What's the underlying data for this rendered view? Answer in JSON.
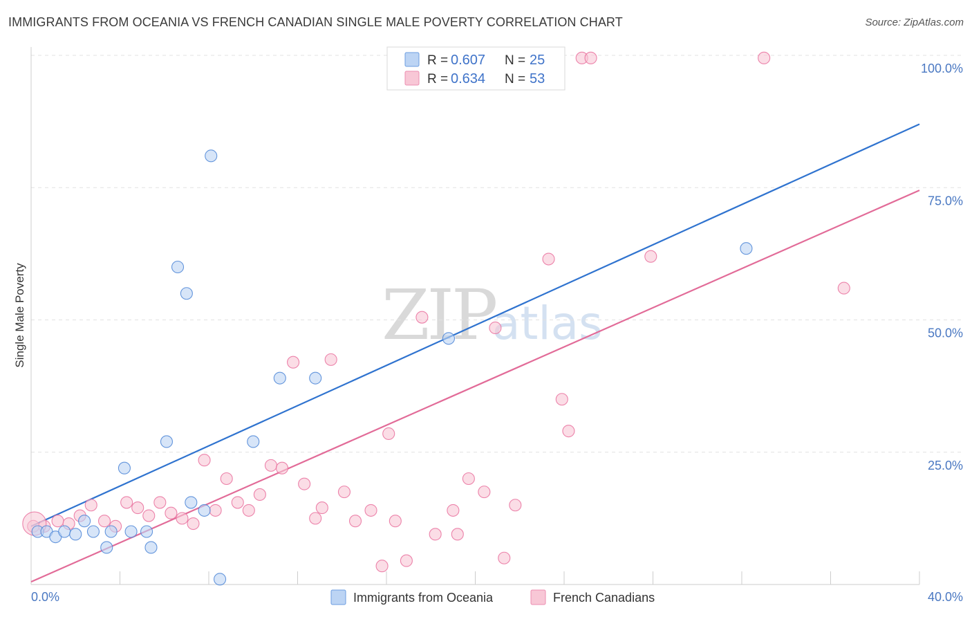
{
  "title": "IMMIGRANTS FROM OCEANIA VS FRENCH CANADIAN SINGLE MALE POVERTY CORRELATION CHART",
  "source": "Source: ZipAtlas.com",
  "watermark": {
    "left": "ZIP",
    "right": "atlas"
  },
  "colors": {
    "blue": "#4a84d6",
    "blue_fill": "#bcd4f4",
    "blue_line": "#2f73cf",
    "pink": "#e96f9c",
    "pink_fill": "#f8c7d6",
    "pink_line": "#e26b98",
    "tick_text": "#4a78c2"
  },
  "chart_data": {
    "type": "scatter",
    "title": "IMMIGRANTS FROM OCEANIA VS FRENCH CANADIAN SINGLE MALE POVERTY CORRELATION CHART",
    "xlabel": "",
    "ylabel": "Single Male Poverty",
    "xlim": [
      0,
      40
    ],
    "ylim": [
      0,
      100
    ],
    "x_tick_labels": [
      "0.0%",
      "40.0%"
    ],
    "y_ticks": [
      25,
      50,
      75,
      100
    ],
    "y_tick_labels": [
      "25.0%",
      "50.0%",
      "75.0%",
      "100.0%"
    ],
    "legend": [
      {
        "r_label": "R =",
        "r_value": "0.607",
        "n_label": "N =",
        "n_value": "25"
      },
      {
        "r_label": "R =",
        "r_value": "0.634",
        "n_label": "N =",
        "n_value": "53"
      }
    ],
    "series": [
      {
        "name": "Immigrants from Oceania",
        "color": "#4a84d6",
        "trend": {
          "x0": 0,
          "y0": 11.0,
          "x1": 40,
          "y1": 87.0
        },
        "points": [
          [
            0.3,
            10.0
          ],
          [
            0.7,
            10.0
          ],
          [
            1.1,
            9.0
          ],
          [
            1.5,
            10.0
          ],
          [
            2.0,
            9.5
          ],
          [
            2.4,
            12.0
          ],
          [
            2.8,
            10.0
          ],
          [
            3.4,
            7.0
          ],
          [
            3.6,
            10.0
          ],
          [
            4.2,
            22.0
          ],
          [
            4.5,
            10.0
          ],
          [
            5.2,
            10.0
          ],
          [
            5.4,
            7.0
          ],
          [
            6.1,
            27.0
          ],
          [
            6.6,
            60.0
          ],
          [
            7.0,
            55.0
          ],
          [
            7.2,
            15.5
          ],
          [
            7.8,
            14.0
          ],
          [
            8.1,
            81.0
          ],
          [
            8.5,
            1.0
          ],
          [
            10.0,
            27.0
          ],
          [
            11.2,
            39.0
          ],
          [
            12.8,
            39.0
          ],
          [
            18.8,
            46.5
          ],
          [
            32.2,
            63.5
          ]
        ]
      },
      {
        "name": "French Canadians",
        "color": "#e96f9c",
        "trend": {
          "x0": 0,
          "y0": 0.5,
          "x1": 40,
          "y1": 74.5
        },
        "points": [
          [
            0.1,
            11.0
          ],
          [
            0.6,
            11.0
          ],
          [
            1.2,
            12.0
          ],
          [
            1.7,
            11.5
          ],
          [
            2.2,
            13.0
          ],
          [
            2.7,
            15.0
          ],
          [
            3.3,
            12.0
          ],
          [
            3.8,
            11.0
          ],
          [
            4.3,
            15.5
          ],
          [
            4.8,
            14.5
          ],
          [
            5.3,
            13.0
          ],
          [
            5.8,
            15.5
          ],
          [
            6.3,
            13.5
          ],
          [
            6.8,
            12.5
          ],
          [
            7.3,
            11.5
          ],
          [
            7.8,
            23.5
          ],
          [
            8.3,
            14.0
          ],
          [
            8.8,
            20.0
          ],
          [
            9.3,
            15.5
          ],
          [
            9.8,
            14.0
          ],
          [
            10.3,
            17.0
          ],
          [
            10.8,
            22.5
          ],
          [
            11.3,
            22.0
          ],
          [
            11.8,
            42.0
          ],
          [
            12.3,
            19.0
          ],
          [
            12.8,
            12.5
          ],
          [
            13.1,
            14.5
          ],
          [
            13.5,
            42.5
          ],
          [
            14.1,
            17.5
          ],
          [
            14.6,
            12.0
          ],
          [
            15.3,
            14.0
          ],
          [
            15.8,
            3.5
          ],
          [
            16.1,
            28.5
          ],
          [
            16.4,
            12.0
          ],
          [
            16.9,
            4.5
          ],
          [
            17.6,
            50.5
          ],
          [
            18.2,
            9.5
          ],
          [
            19.0,
            14.0
          ],
          [
            19.2,
            9.5
          ],
          [
            19.7,
            20.0
          ],
          [
            20.4,
            17.5
          ],
          [
            20.9,
            48.5
          ],
          [
            21.3,
            5.0
          ],
          [
            21.8,
            15.0
          ],
          [
            23.3,
            61.5
          ],
          [
            23.9,
            35.0
          ],
          [
            24.2,
            29.0
          ],
          [
            24.8,
            99.5
          ],
          [
            25.2,
            99.5
          ],
          [
            27.9,
            62.0
          ],
          [
            33.0,
            99.5
          ],
          [
            36.6,
            56.0
          ],
          [
            0.15,
            11.5
          ]
        ]
      }
    ]
  },
  "legend_bottom": [
    "Immigrants from Oceania",
    "French Canadians"
  ]
}
